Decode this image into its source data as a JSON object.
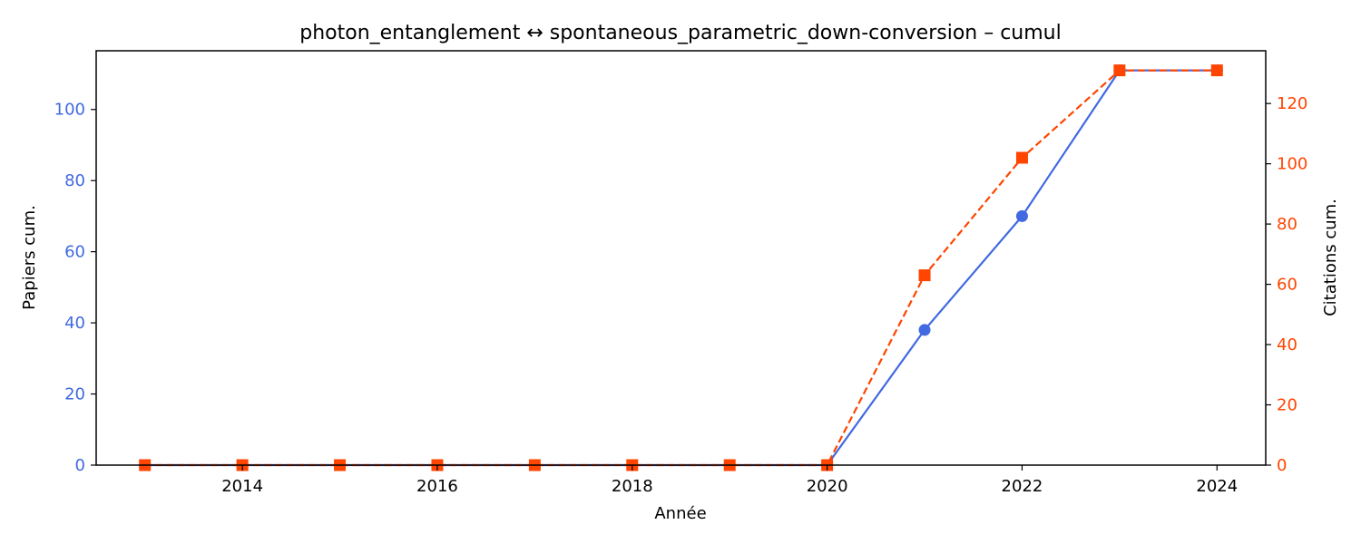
{
  "chart_data": {
    "type": "line",
    "title": "photon_entanglement  ↔  spontaneous_parametric_down-conversion  –  cumul",
    "xlabel": "Année",
    "x": [
      2013,
      2014,
      2015,
      2016,
      2017,
      2018,
      2019,
      2020,
      2021,
      2022,
      2023,
      2024
    ],
    "xlim": [
      2012.5,
      2024.5
    ],
    "xticks": [
      2014,
      2016,
      2018,
      2020,
      2022,
      2024
    ],
    "grid": false,
    "y_left": {
      "label": "Papiers cum.",
      "color": "#4169e1",
      "lim": [
        0,
        116.5
      ],
      "ticks": [
        0,
        20,
        40,
        60,
        80,
        100
      ]
    },
    "y_right": {
      "label": "Citations cum.",
      "color": "#ff4500",
      "lim": [
        0,
        137.5
      ],
      "ticks": [
        0,
        20,
        40,
        60,
        80,
        100,
        120
      ]
    },
    "series": [
      {
        "axis": "left",
        "color": "#4169e1",
        "line": "solid",
        "marker": "circle",
        "values": [
          0,
          0,
          0,
          0,
          0,
          0,
          0,
          0,
          38,
          70,
          111,
          111
        ]
      },
      {
        "axis": "right",
        "color": "#ff4500",
        "line": "dashed",
        "marker": "square",
        "values": [
          0,
          0,
          0,
          0,
          0,
          0,
          0,
          0,
          63,
          102,
          131,
          131
        ]
      }
    ]
  }
}
